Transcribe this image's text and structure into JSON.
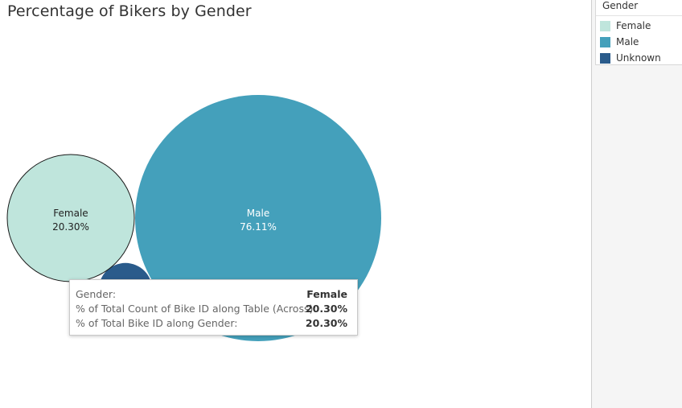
{
  "title": "Percentage of Bikers by Gender",
  "legend": {
    "title": "Gender",
    "items": [
      {
        "label": "Female",
        "color": "#bfe5dc"
      },
      {
        "label": "Male",
        "color": "#44a0bb"
      },
      {
        "label": "Unknown",
        "color": "#2a5b8b"
      }
    ]
  },
  "chart_data": {
    "type": "packed-bubble",
    "title": "Percentage of Bikers by Gender",
    "series": [
      {
        "name": "Female",
        "value": 20.3,
        "label": "20.30%",
        "color": "#bfe5dc"
      },
      {
        "name": "Male",
        "value": 76.11,
        "label": "76.11%",
        "color": "#44a0bb"
      },
      {
        "name": "Unknown",
        "value": 3.59,
        "label": "",
        "color": "#2a5b8b"
      }
    ]
  },
  "tooltip": {
    "rows": [
      {
        "label": "Gender:",
        "value": "Female"
      },
      {
        "label": "% of Total Count of Bike ID along Table (Across):",
        "value": "20.30%"
      },
      {
        "label": "% of Total Bike ID along Gender:",
        "value": "20.30%"
      }
    ]
  }
}
